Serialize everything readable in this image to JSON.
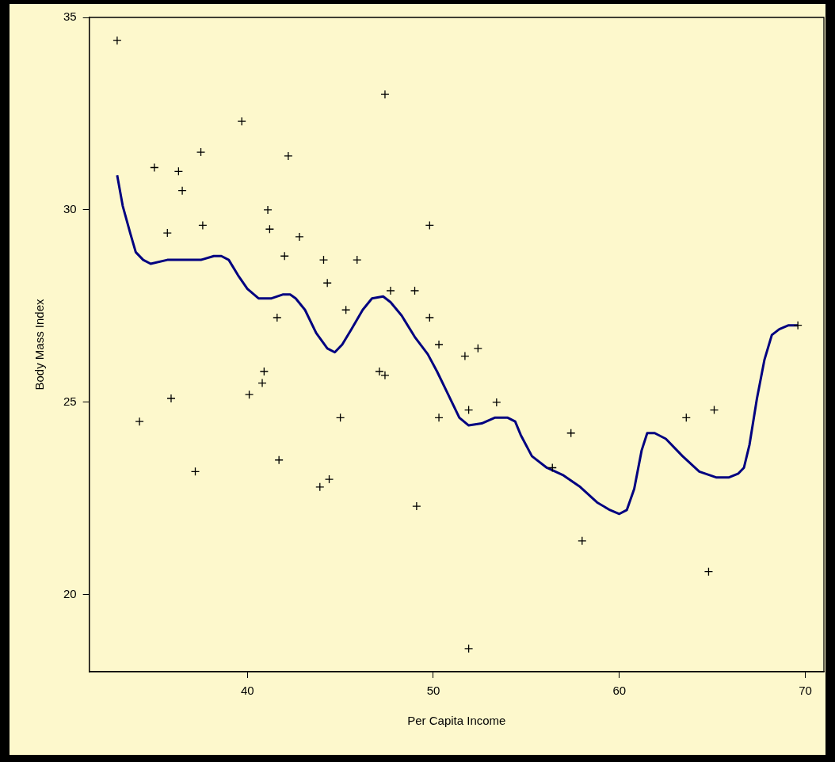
{
  "chart_data": {
    "type": "scatter",
    "xlabel": "Per Capita Income",
    "ylabel": "Body Mass Index",
    "xlim": [
      31.5,
      71
    ],
    "ylim": [
      18,
      35
    ],
    "xticks": [
      40,
      50,
      60,
      70
    ],
    "yticks": [
      20,
      25,
      30,
      35
    ],
    "grid": false,
    "legend": false,
    "series": [
      {
        "type": "scatter",
        "color": "#000000",
        "marker": "cross",
        "x": [
          33.0,
          34.2,
          35.0,
          35.7,
          35.9,
          36.3,
          36.5,
          37.2,
          37.5,
          37.6,
          39.7,
          40.1,
          40.8,
          40.9,
          41.1,
          41.2,
          41.6,
          41.7,
          42.0,
          42.2,
          42.8,
          43.9,
          44.1,
          44.3,
          44.4,
          45.0,
          45.3,
          45.9,
          47.1,
          47.4,
          47.4,
          47.7,
          49.0,
          49.1,
          49.8,
          49.8,
          50.3,
          50.3,
          51.7,
          51.9,
          51.9,
          52.4,
          53.4,
          56.4,
          57.4,
          58.0,
          63.6,
          64.8,
          65.1,
          69.6
        ],
        "values": [
          34.4,
          24.5,
          31.1,
          29.4,
          25.1,
          31.0,
          30.5,
          23.2,
          31.5,
          29.6,
          32.3,
          25.2,
          25.5,
          25.8,
          30.0,
          29.5,
          27.2,
          23.5,
          28.8,
          31.4,
          29.3,
          22.8,
          28.7,
          28.1,
          23.0,
          24.6,
          27.4,
          28.7,
          25.8,
          25.7,
          33.0,
          27.9,
          27.9,
          22.3,
          27.2,
          29.6,
          26.5,
          24.6,
          26.2,
          24.8,
          18.6,
          26.4,
          25.0,
          23.3,
          24.2,
          21.4,
          24.6,
          20.6,
          24.8,
          27.0
        ]
      },
      {
        "type": "line",
        "color": "#000080",
        "marker": "none",
        "line_style": "solid",
        "x": [
          33.0,
          33.3,
          33.7,
          34.0,
          34.4,
          34.8,
          35.7,
          36.9,
          37.5,
          38.2,
          38.6,
          39.0,
          39.5,
          40.0,
          40.6,
          41.3,
          41.9,
          42.3,
          42.6,
          43.1,
          43.7,
          44.3,
          44.7,
          45.1,
          45.6,
          46.2,
          46.7,
          47.3,
          47.7,
          48.3,
          49.0,
          49.7,
          50.2,
          50.8,
          51.4,
          51.9,
          52.6,
          53.3,
          54.0,
          54.4,
          54.7,
          55.3,
          56.1,
          57.0,
          57.9,
          58.8,
          59.5,
          60.0,
          60.4,
          60.8,
          61.2,
          61.5,
          61.9,
          62.5,
          63.4,
          64.3,
          65.2,
          65.9,
          66.4,
          66.7,
          67.0,
          67.4,
          67.8,
          68.2,
          68.6,
          69.1,
          69.6
        ],
        "values": [
          30.9,
          30.1,
          29.4,
          28.9,
          28.7,
          28.6,
          28.7,
          28.7,
          28.7,
          28.8,
          28.8,
          28.7,
          28.3,
          27.95,
          27.7,
          27.7,
          27.8,
          27.8,
          27.7,
          27.4,
          26.8,
          26.4,
          26.3,
          26.5,
          26.9,
          27.4,
          27.7,
          27.75,
          27.6,
          27.25,
          26.7,
          26.25,
          25.8,
          25.2,
          24.6,
          24.4,
          24.45,
          24.6,
          24.6,
          24.5,
          24.15,
          23.6,
          23.3,
          23.1,
          22.8,
          22.4,
          22.2,
          22.1,
          22.2,
          22.75,
          23.75,
          24.2,
          24.2,
          24.05,
          23.6,
          23.2,
          23.05,
          23.05,
          23.15,
          23.3,
          23.9,
          25.1,
          26.1,
          26.75,
          26.9,
          27.0,
          27.0
        ]
      }
    ]
  }
}
